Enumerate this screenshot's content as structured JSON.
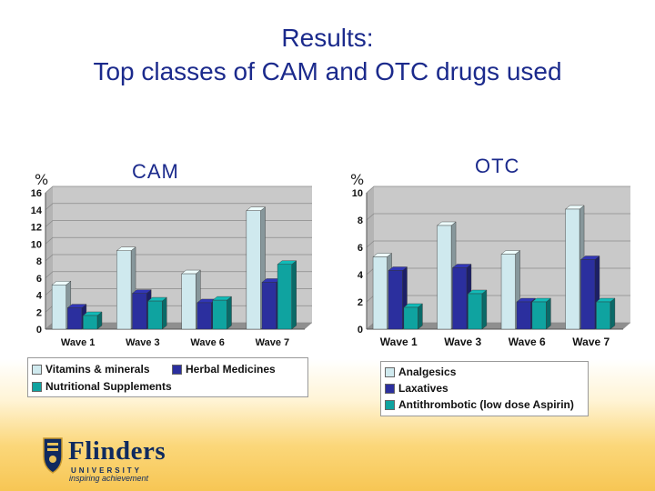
{
  "title": {
    "line1": "Results:",
    "line2": "Top classes of CAM and OTC drugs used"
  },
  "cam_label": "CAM",
  "otc_label": "OTC",
  "cam_pct": "%",
  "otc_pct": "%",
  "colors": {
    "s1": "#cfe9ee",
    "s2": "#2b2f9e",
    "s3": "#0fa3a0",
    "wall": "#c9c9c9",
    "title": "#1b2a8c"
  },
  "logo": {
    "name": "Flinders",
    "sub": "UNIVERSITY",
    "tagline": "inspiring achievement"
  },
  "chart_data": [
    {
      "type": "bar",
      "title": "CAM",
      "ylabel": "%",
      "categories": [
        "Wave 1",
        "Wave 3",
        "Wave 6",
        "Wave 7"
      ],
      "series": [
        {
          "name": "Vitamins & minerals",
          "values": [
            5.2,
            9.2,
            6.5,
            13.9
          ]
        },
        {
          "name": "Herbal Medicines",
          "values": [
            2.5,
            4.2,
            3.1,
            5.5
          ]
        },
        {
          "name": "Nutritional Supplements",
          "values": [
            1.6,
            3.3,
            3.4,
            7.6
          ]
        }
      ],
      "yticks": [
        "0",
        "2",
        "4",
        "6",
        "8",
        "10",
        "12",
        "14",
        "16"
      ],
      "ylim": [
        0,
        16
      ]
    },
    {
      "type": "bar",
      "title": "OTC",
      "ylabel": "%",
      "categories": [
        "Wave 1",
        "Wave 3",
        "Wave 6",
        "Wave 7"
      ],
      "series": [
        {
          "name": "Analgesics",
          "values": [
            5.3,
            7.6,
            5.5,
            8.8
          ]
        },
        {
          "name": "Laxatives",
          "values": [
            4.3,
            4.5,
            2.0,
            5.1
          ]
        },
        {
          "name": "Antithrombotic (low dose Aspirin)",
          "values": [
            1.6,
            2.6,
            2.0,
            2.0
          ]
        }
      ],
      "yticks": [
        "0",
        "2",
        "4",
        "6",
        "8",
        "10"
      ],
      "ylim": [
        0,
        10
      ]
    }
  ]
}
